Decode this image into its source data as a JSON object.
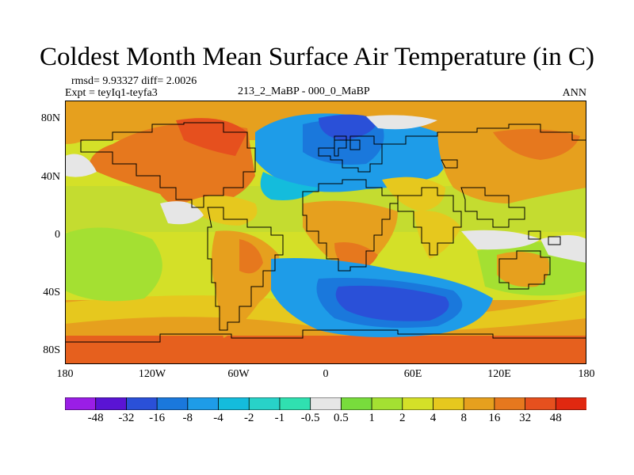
{
  "title": "Coldest Month Mean Surface Air Temperature (in C)",
  "stats": "rmsd= 9.93327 diff= 2.0026",
  "experiment": "Expt = teyIq1-teyfa3",
  "difference_case": "213_2_MaBP - 000_0_MaBP",
  "season": "ANN",
  "axes": {
    "x_ticks": [
      "180",
      "120W",
      "60W",
      "0",
      "60E",
      "120E",
      "180"
    ],
    "y_ticks": [
      "80N",
      "40N",
      "0",
      "40S",
      "80S"
    ]
  },
  "colorbar": {
    "labels": [
      "-48",
      "-32",
      "-16",
      "-8",
      "-4",
      "-2",
      "-1",
      "-0.5",
      "0.5",
      "1",
      "2",
      "4",
      "8",
      "16",
      "32",
      "48"
    ],
    "colors": [
      "#9a1ee6",
      "#5a14d4",
      "#2a50d8",
      "#1a78dc",
      "#1e9ce8",
      "#14bcdc",
      "#28d2c8",
      "#30e0b0",
      "#e6e6e6",
      "#78dc3c",
      "#a4e032",
      "#d4e028",
      "#e6c81e",
      "#e6a01e",
      "#e6781e",
      "#e6501e",
      "#e02810"
    ]
  }
}
